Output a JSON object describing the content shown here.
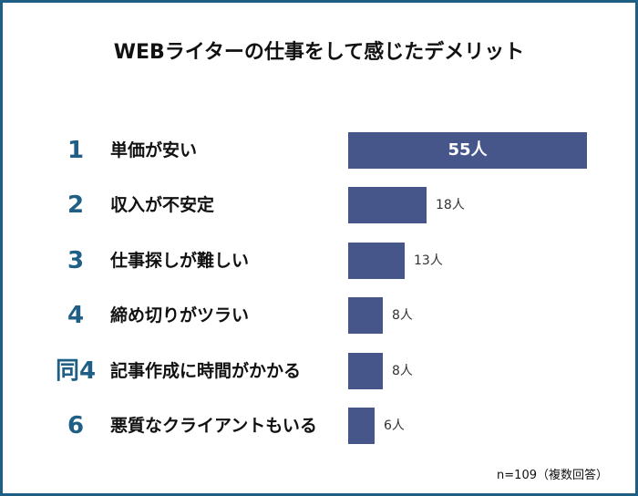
{
  "chart_data": {
    "type": "bar",
    "orientation": "horizontal",
    "title": "WEBライターの仕事をして感じたデメリット",
    "ranks": [
      "1",
      "2",
      "3",
      "4",
      "同4",
      "6"
    ],
    "categories": [
      "単価が安い",
      "収入が不安定",
      "仕事探しが難しい",
      "締め切りがツラい",
      "記事作成に時間がかかる",
      "悪質なクライアントもいる"
    ],
    "values": [
      55,
      18,
      13,
      8,
      8,
      6
    ],
    "value_labels": [
      "55人",
      "18人",
      "13人",
      "8人",
      "8人",
      "6人"
    ],
    "unit": "人",
    "note": "n=109（複数回答）",
    "bar_color": "#46568a",
    "accent_color": "#1f5f86"
  }
}
